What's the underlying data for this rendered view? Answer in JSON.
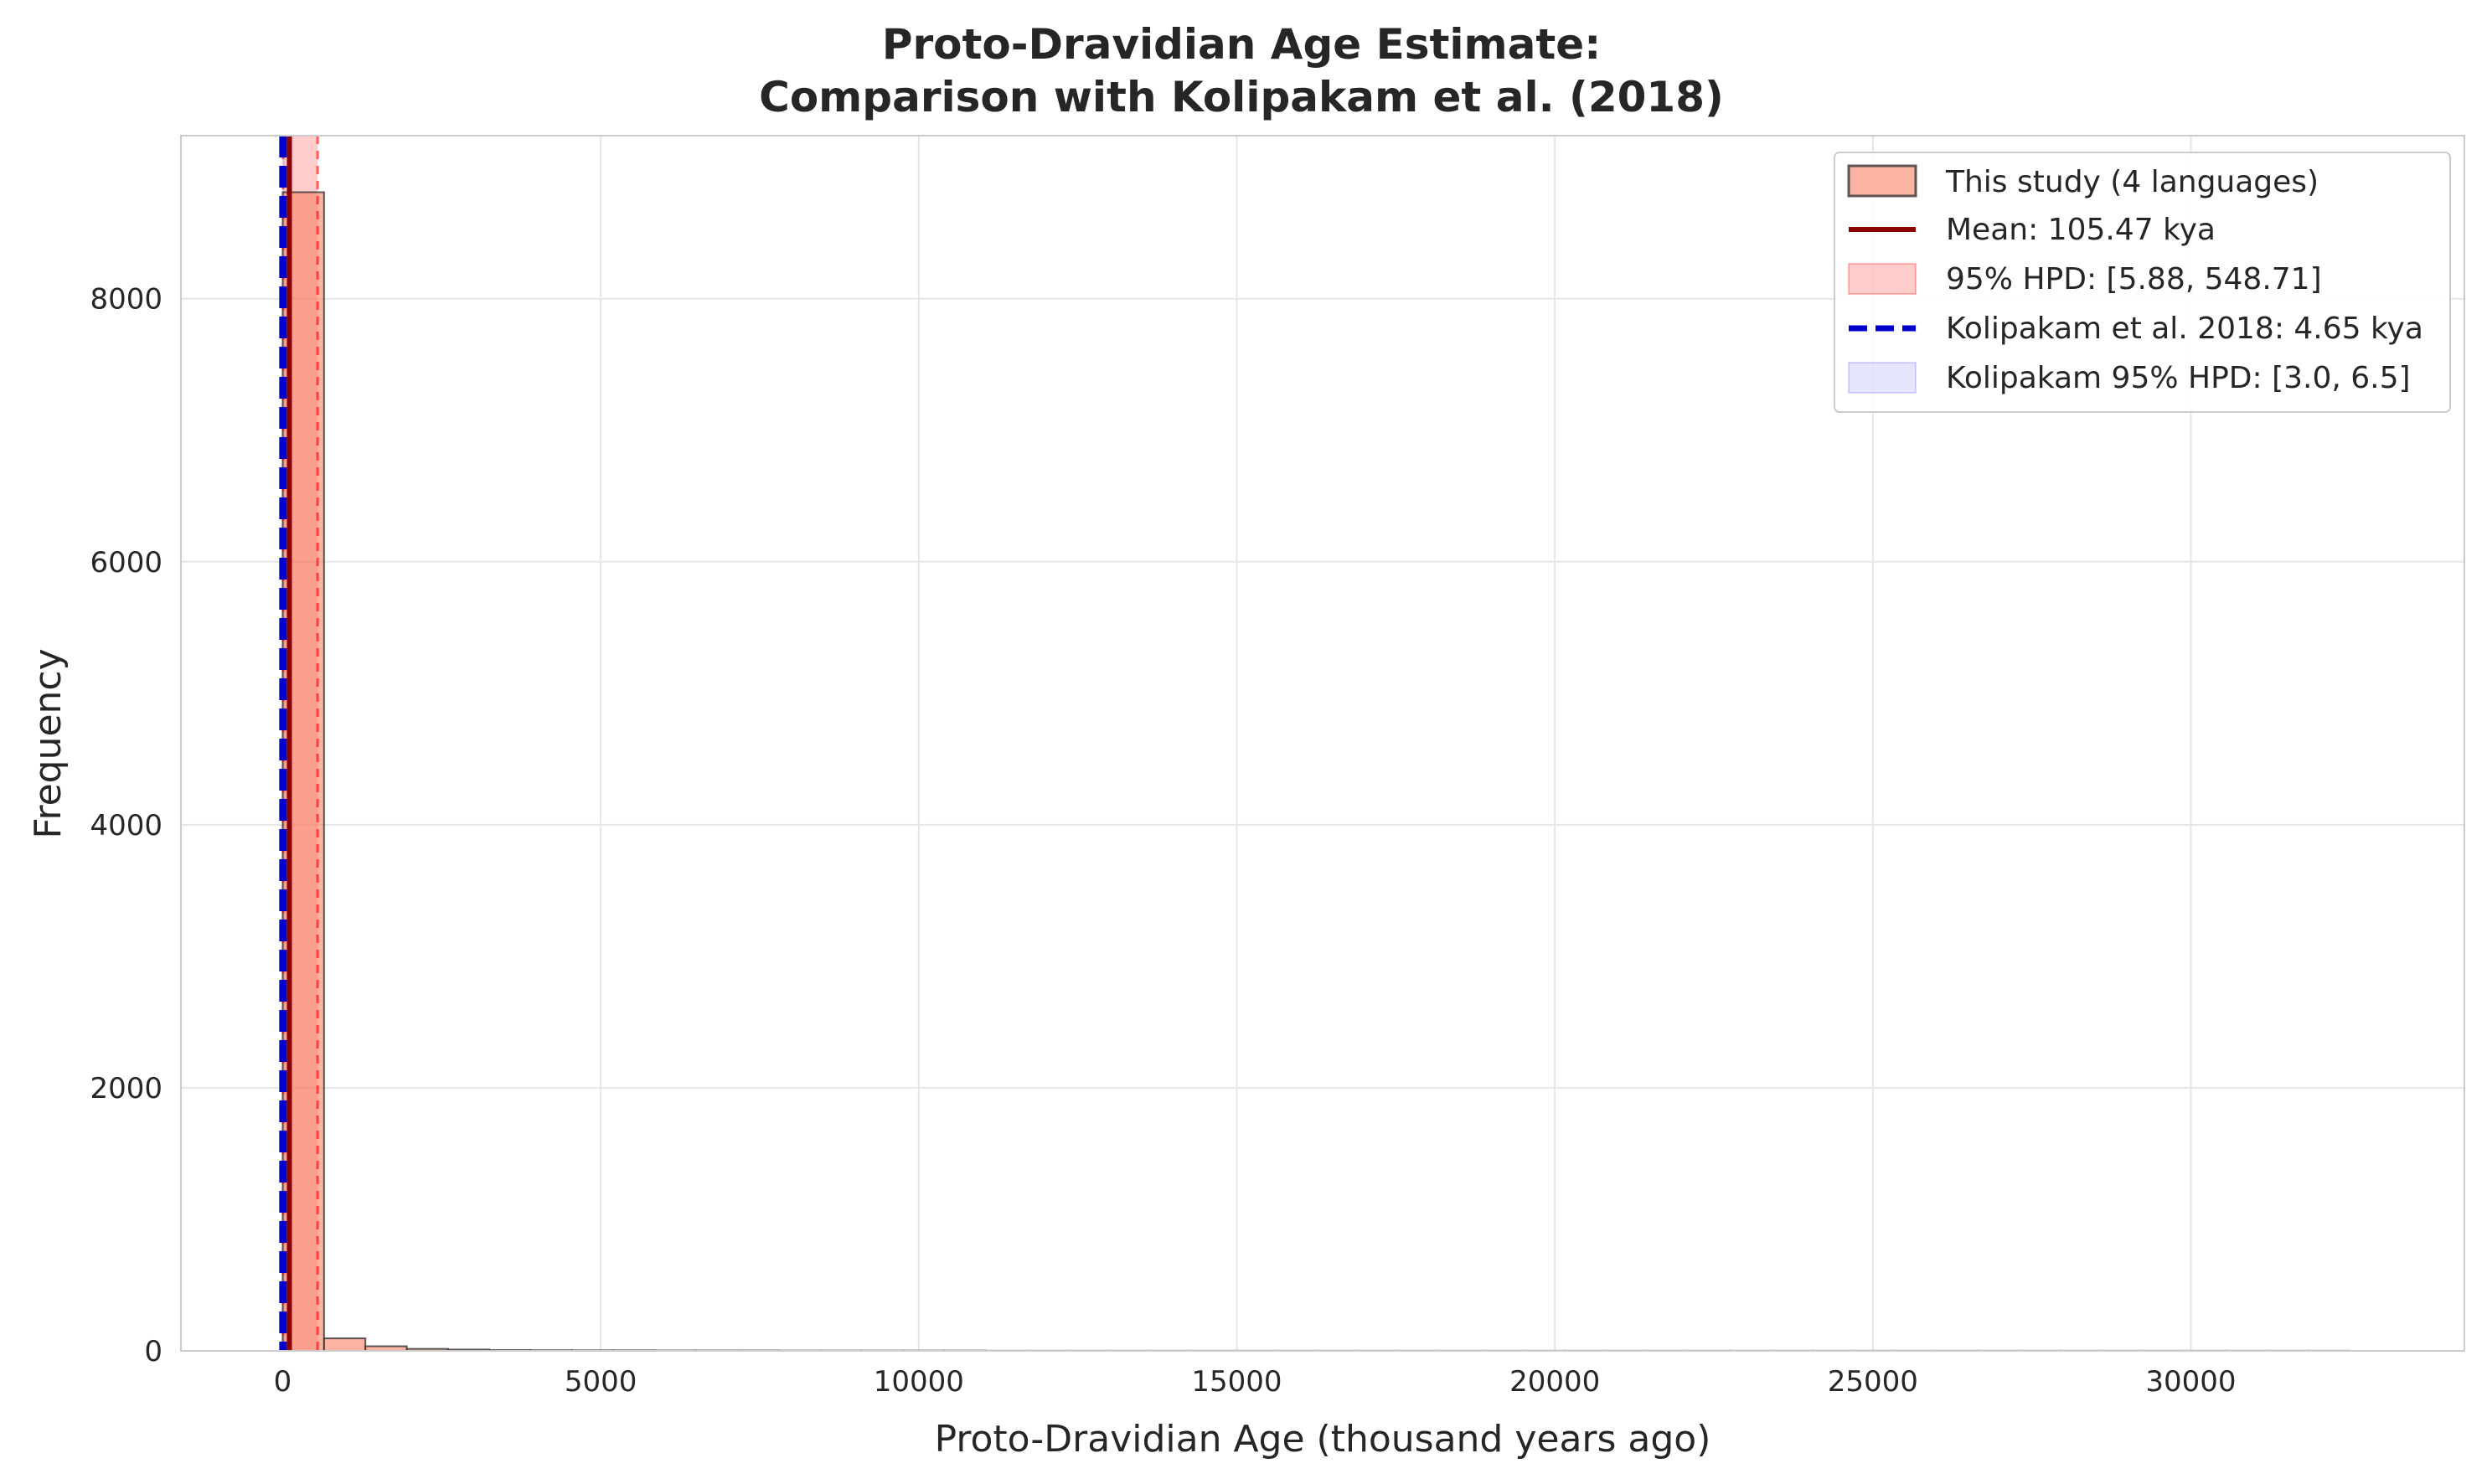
{
  "chart_data": {
    "type": "bar",
    "title_line1": "Proto-Dravidian Age Estimate:",
    "title_line2": "Comparison with Kolipakam et al. (2018)",
    "xlabel": "Proto-Dravidian Age (thousand years ago)",
    "ylabel": "Frequency",
    "xlim": [
      -1600,
      34300
    ],
    "ylim": [
      0,
      9240
    ],
    "x_ticks": [
      0,
      5000,
      10000,
      15000,
      20000,
      25000,
      30000
    ],
    "y_ticks": [
      0,
      2000,
      4000,
      6000,
      8000
    ],
    "grid": true,
    "legend_position": "top-right",
    "histogram": {
      "name": "This study (4 languages)",
      "bin_start": 0,
      "bin_width": 650,
      "counts": [
        8810,
        95,
        35,
        15,
        10,
        6,
        5,
        4,
        4,
        3,
        3,
        3,
        2,
        2,
        2,
        2,
        2,
        1,
        1,
        1,
        1,
        1,
        1,
        1,
        1,
        1,
        1,
        1,
        1,
        1,
        1,
        1,
        1,
        1,
        1,
        1,
        1,
        1,
        1,
        1,
        1,
        1,
        1,
        1,
        1,
        1,
        1,
        1,
        1,
        1
      ],
      "fill": "#fa8064",
      "edge": "#333333"
    },
    "mean": {
      "label": "Mean: 105.47 kya",
      "value": 105.47,
      "color": "#8b0000"
    },
    "hpd": {
      "label": "95% HPD: [5.88, 548.71]",
      "range": [
        5.88,
        548.71
      ],
      "color": "#ff0000"
    },
    "reference": {
      "label": "Kolipakam et al. 2018: 4.65 kya",
      "value": 4.65,
      "color": "#0000cc"
    },
    "reference_hpd": {
      "label": "Kolipakam 95% HPD: [3.0, 6.5]",
      "range": [
        3.0,
        6.5
      ],
      "color": "#0000ff"
    }
  }
}
